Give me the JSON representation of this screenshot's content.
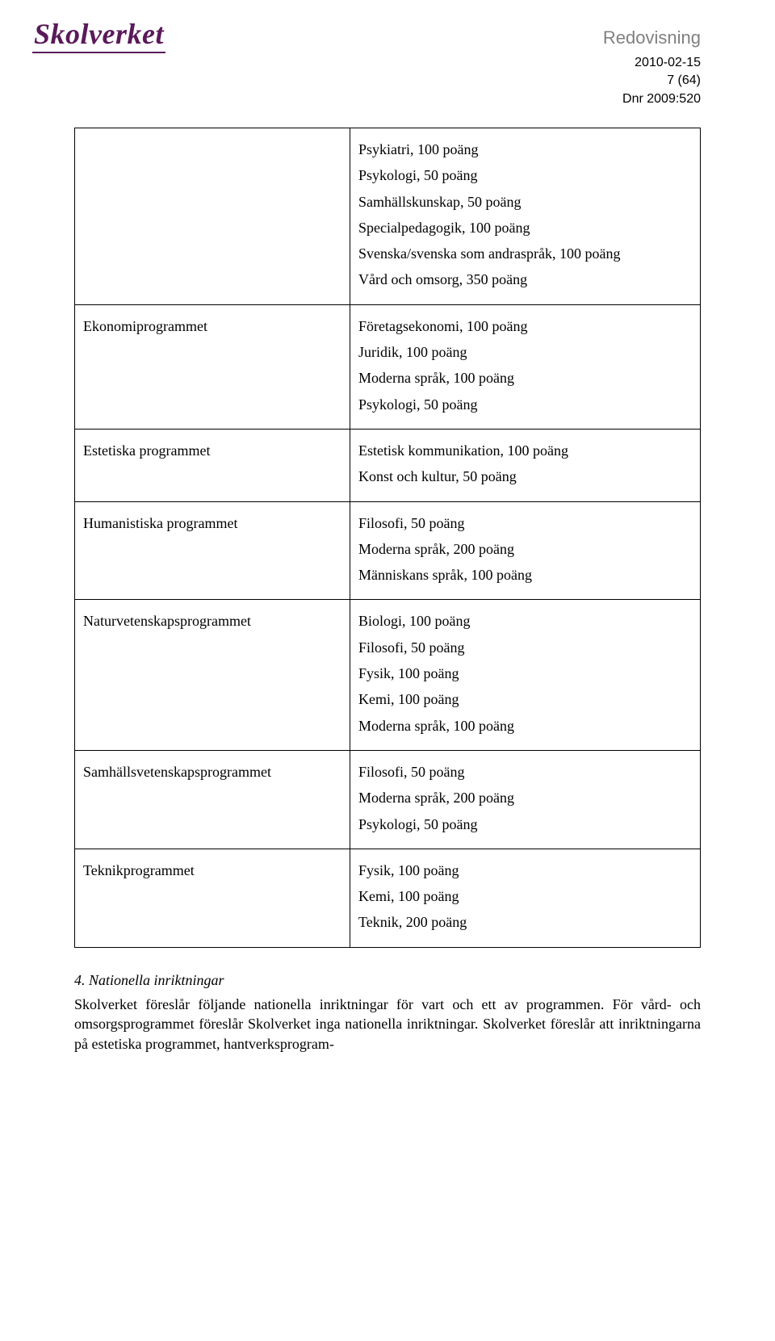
{
  "logo": {
    "text": "Skolverket",
    "color": "#5a1a5a"
  },
  "header": {
    "title": "Redovisning",
    "date": "2010-02-15",
    "page": "7 (64)",
    "dnr": "Dnr 2009:520"
  },
  "table": {
    "rows": [
      {
        "left": "",
        "right": [
          "Psykiatri, 100 poäng",
          "Psykologi, 50 poäng",
          "Samhällskunskap, 50 poäng",
          "Specialpedagogik, 100 poäng",
          "Svenska/svenska som andraspråk, 100 poäng",
          "Vård och omsorg, 350 poäng"
        ]
      },
      {
        "left": "Ekonomiprogrammet",
        "right": [
          "Företagsekonomi, 100 poäng",
          "Juridik, 100 poäng",
          "Moderna språk, 100 poäng",
          "Psykologi, 50 poäng"
        ]
      },
      {
        "left": "Estetiska programmet",
        "right": [
          "Estetisk kommunikation, 100 poäng",
          "Konst och kultur, 50 poäng"
        ]
      },
      {
        "left": "Humanistiska programmet",
        "right": [
          "Filosofi, 50 poäng",
          "Moderna språk, 200 poäng",
          "Människans språk, 100 poäng"
        ]
      },
      {
        "left": "Naturvetenskapsprogrammet",
        "right": [
          "Biologi, 100 poäng",
          "Filosofi, 50 poäng",
          "Fysik, 100 poäng",
          "Kemi, 100 poäng",
          "Moderna språk, 100 poäng"
        ]
      },
      {
        "left": "Samhällsvetenskapsprogrammet",
        "right": [
          "Filosofi, 50 poäng",
          "Moderna språk, 200 poäng",
          "Psykologi, 50 poäng"
        ]
      },
      {
        "left": "Teknikprogrammet",
        "right": [
          "Fysik, 100 poäng",
          "Kemi, 100 poäng",
          "Teknik, 200 poäng"
        ]
      }
    ]
  },
  "section4": {
    "heading": "4. Nationella inriktningar",
    "p1": "Skolverket föreslår följande nationella inriktningar för vart och ett av programmen. För vård- och omsorgsprogrammet föreslår Skolverket inga nationella inriktningar. Skolverket föreslår att inriktningarna på estetiska programmet, hantverksprogram-"
  }
}
